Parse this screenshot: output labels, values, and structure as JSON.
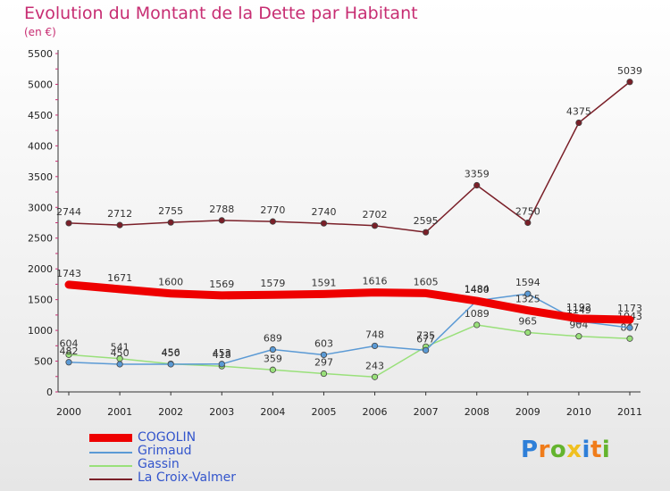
{
  "chart_data": {
    "type": "line",
    "title": "Evolution du Montant de la Dette par Habitant",
    "subtitle": "(en €)",
    "xlabel": "",
    "ylabel": "",
    "x": [
      "2000",
      "2001",
      "2002",
      "2003",
      "2004",
      "2005",
      "2006",
      "2007",
      "2008",
      "2009",
      "2010",
      "2011"
    ],
    "ylim": [
      0,
      5500
    ],
    "yticks": [
      0,
      500,
      1000,
      1500,
      2000,
      2500,
      3000,
      3500,
      4000,
      4500,
      5000,
      5500
    ],
    "grid": false,
    "legend_position": "bottom-left",
    "series": [
      {
        "name": "La Croix-Valmer",
        "color": "#7a1f28",
        "values": [
          2744,
          2712,
          2755,
          2788,
          2770,
          2740,
          2702,
          2595,
          3359,
          2750,
          4375,
          5039
        ]
      },
      {
        "name": "Gassin",
        "color": "#99e07a",
        "values": [
          604,
          541,
          456,
          418,
          359,
          297,
          243,
          735,
          1089,
          965,
          904,
          867
        ]
      },
      {
        "name": "Grimaud",
        "color": "#5b9ad5",
        "values": [
          482,
          450,
          450,
          453,
          689,
          603,
          748,
          677,
          1484,
          1594,
          1149,
          1043
        ]
      },
      {
        "name": "COGOLIN",
        "color": "#ee0000",
        "values": [
          1743,
          1671,
          1600,
          1569,
          1579,
          1591,
          1616,
          1605,
          1480,
          1325,
          1192,
          1173
        ]
      }
    ]
  },
  "legend": [
    {
      "label": "COGOLIN",
      "color": "#ee0000"
    },
    {
      "label": "Grimaud",
      "color": "#5b9ad5"
    },
    {
      "label": "Gassin",
      "color": "#99e07a"
    },
    {
      "label": "La Croix-Valmer",
      "color": "#7a1f28"
    }
  ],
  "logo": {
    "letters": [
      "P",
      "r",
      "o",
      "x",
      "i",
      "t",
      "i"
    ],
    "colors": [
      "#2e7fd8",
      "#f07c1a",
      "#64b42e",
      "#f0c020",
      "#2e7fd8",
      "#f07c1a",
      "#64b42e"
    ]
  }
}
